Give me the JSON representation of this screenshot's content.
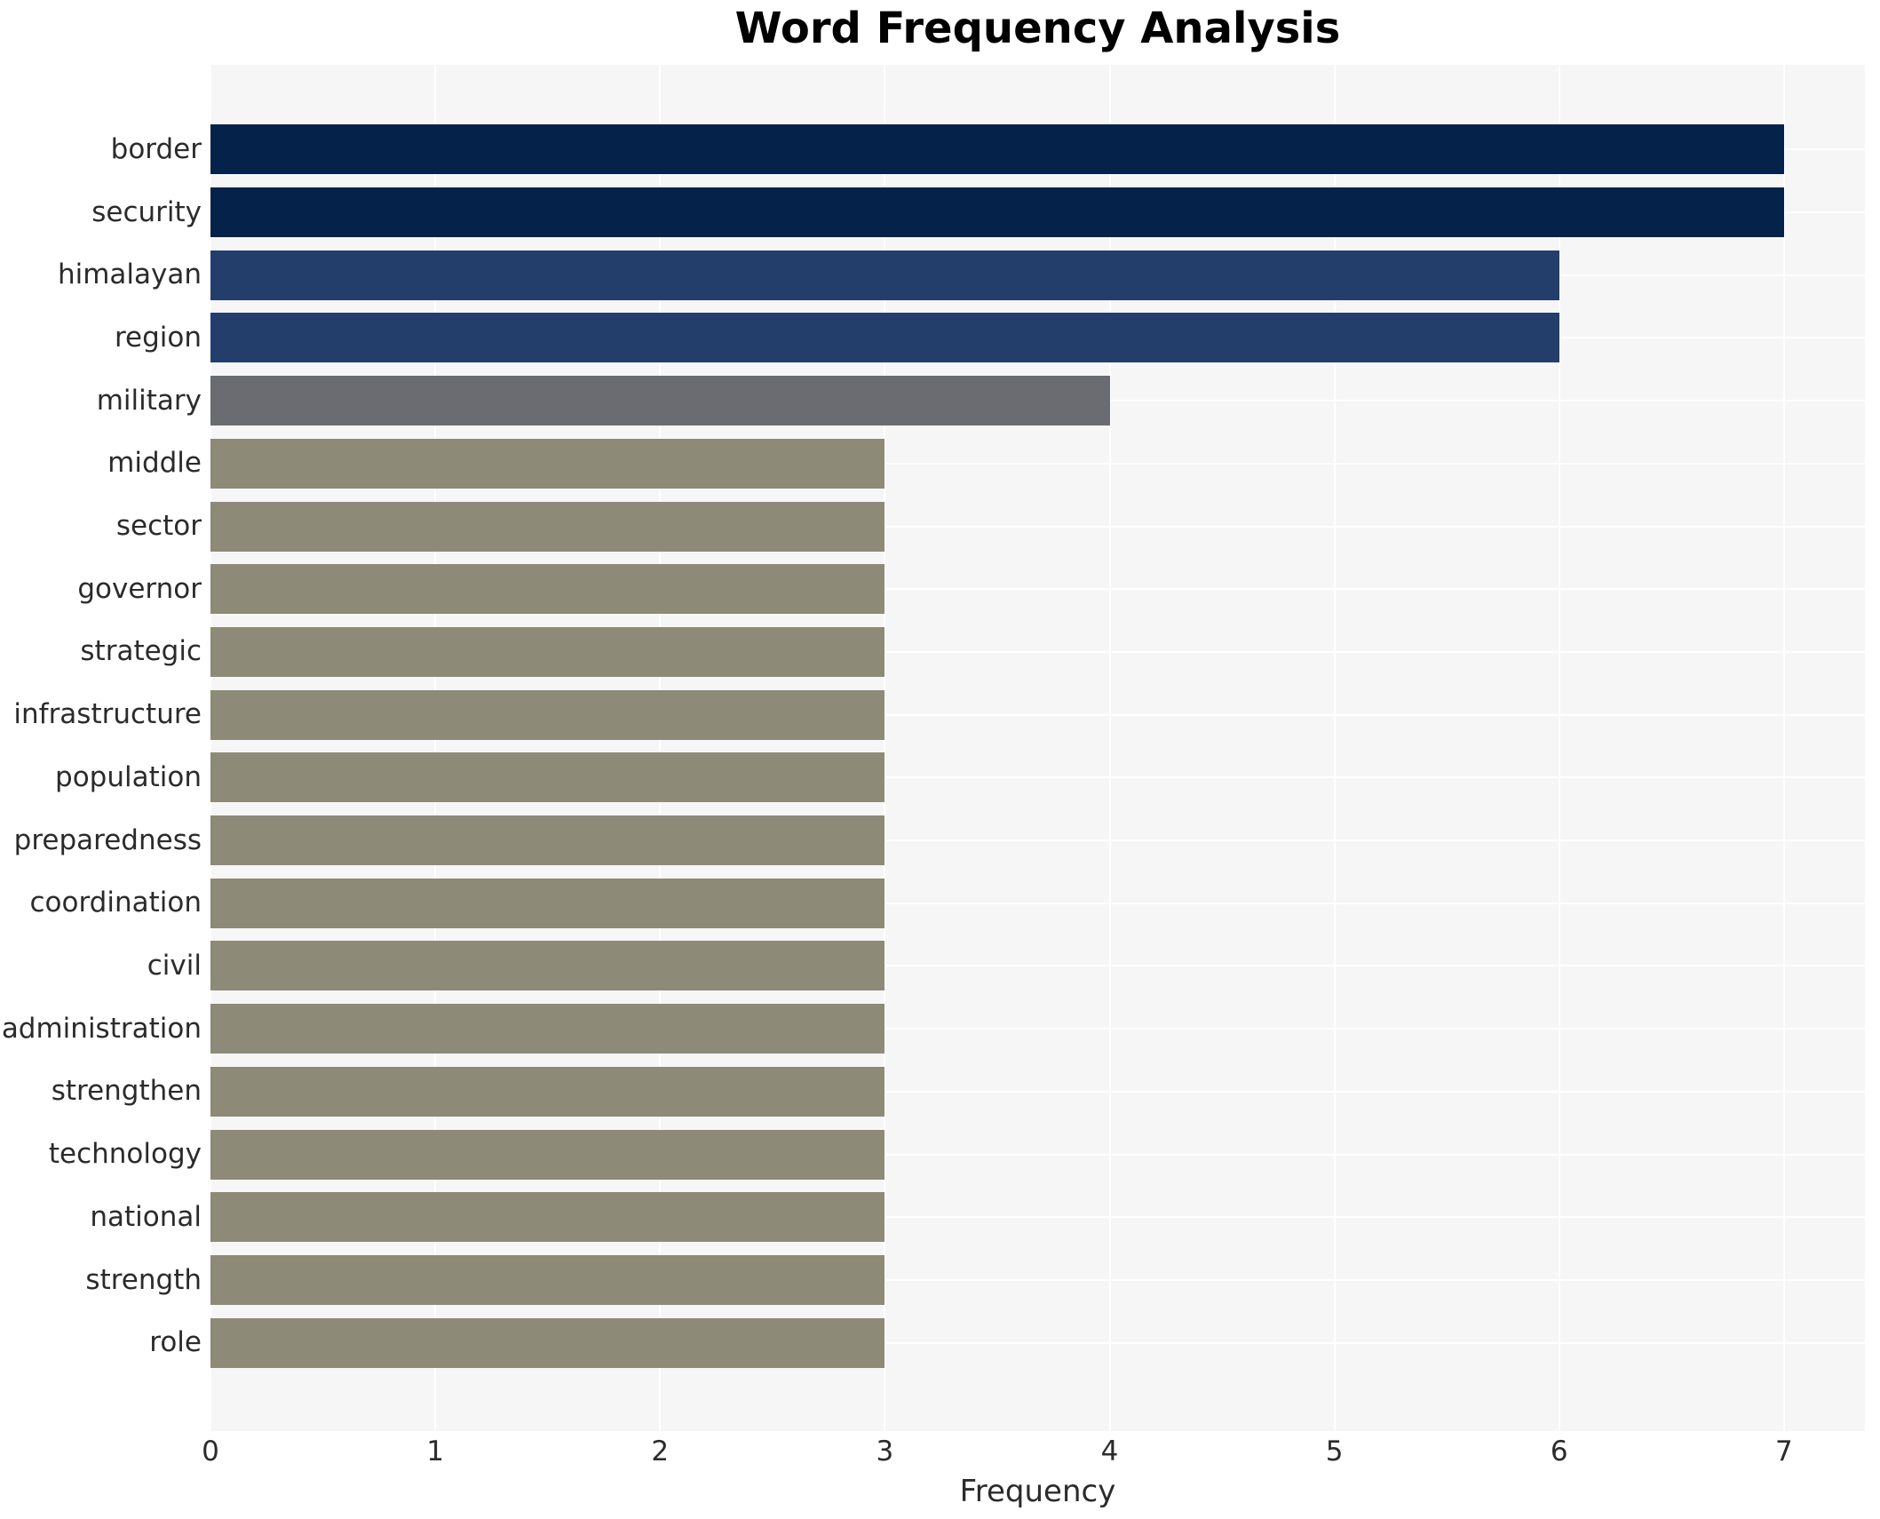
{
  "title": "Word Frequency Analysis",
  "chart_data": {
    "type": "bar",
    "orientation": "horizontal",
    "title": "Word Frequency Analysis",
    "xlabel": "Frequency",
    "ylabel": "",
    "xlim": [
      0,
      7.36
    ],
    "xticks": [
      0,
      1,
      2,
      3,
      4,
      5,
      6,
      7
    ],
    "grid": true,
    "legend": "none",
    "plot_bg_color": "#f6f6f7",
    "gridline_color": "#ffffff",
    "categories": [
      "border",
      "security",
      "himalayan",
      "region",
      "military",
      "middle",
      "sector",
      "governor",
      "strategic",
      "infrastructure",
      "population",
      "preparedness",
      "coordination",
      "civil",
      "administration",
      "strengthen",
      "technology",
      "national",
      "strength",
      "role"
    ],
    "values": [
      7,
      7,
      6,
      6,
      4,
      3,
      3,
      3,
      3,
      3,
      3,
      3,
      3,
      3,
      3,
      3,
      3,
      3,
      3,
      3
    ],
    "bar_colors": [
      "#04224a",
      "#04224a",
      "#243e6b",
      "#243e6b",
      "#6b6c71",
      "#8e8a78",
      "#8e8a78",
      "#8e8a78",
      "#8e8a78",
      "#8e8a78",
      "#8e8a78",
      "#8e8a78",
      "#8e8a78",
      "#8e8a78",
      "#8e8a78",
      "#8e8a78",
      "#8e8a78",
      "#8e8a78",
      "#8e8a78",
      "#8e8a78"
    ],
    "value_color_legend": {
      "7": "#04224a",
      "6": "#243e6b",
      "4": "#6b6c71",
      "3": "#8e8a78"
    }
  }
}
